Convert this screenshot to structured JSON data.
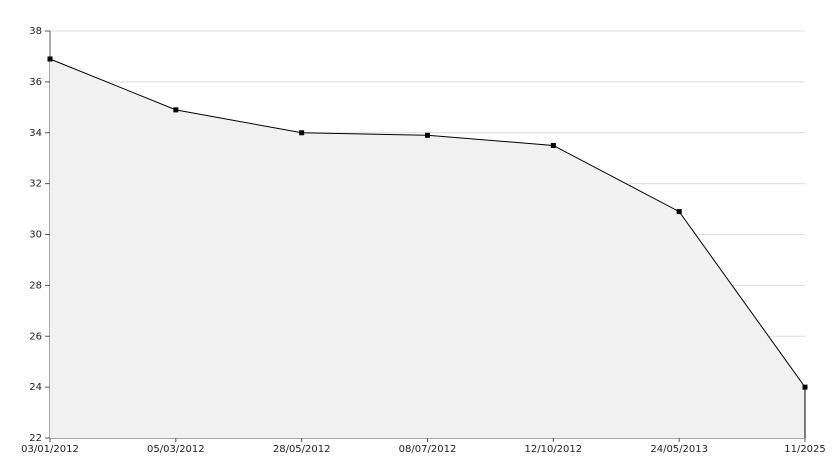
{
  "chart_data": {
    "type": "area",
    "categories": [
      "03/01/2012",
      "05/03/2012",
      "28/05/2012",
      "08/07/2012",
      "12/10/2012",
      "24/05/2013",
      "11/2025"
    ],
    "values": [
      36.9,
      34.9,
      34.0,
      33.9,
      33.5,
      30.9,
      24.0
    ],
    "color": "#000000",
    "fill": "#f1f1f1",
    "ylim": [
      22,
      38
    ],
    "yticks": [
      22,
      24,
      26,
      28,
      30,
      32,
      34,
      36,
      38
    ],
    "grid": true
  }
}
